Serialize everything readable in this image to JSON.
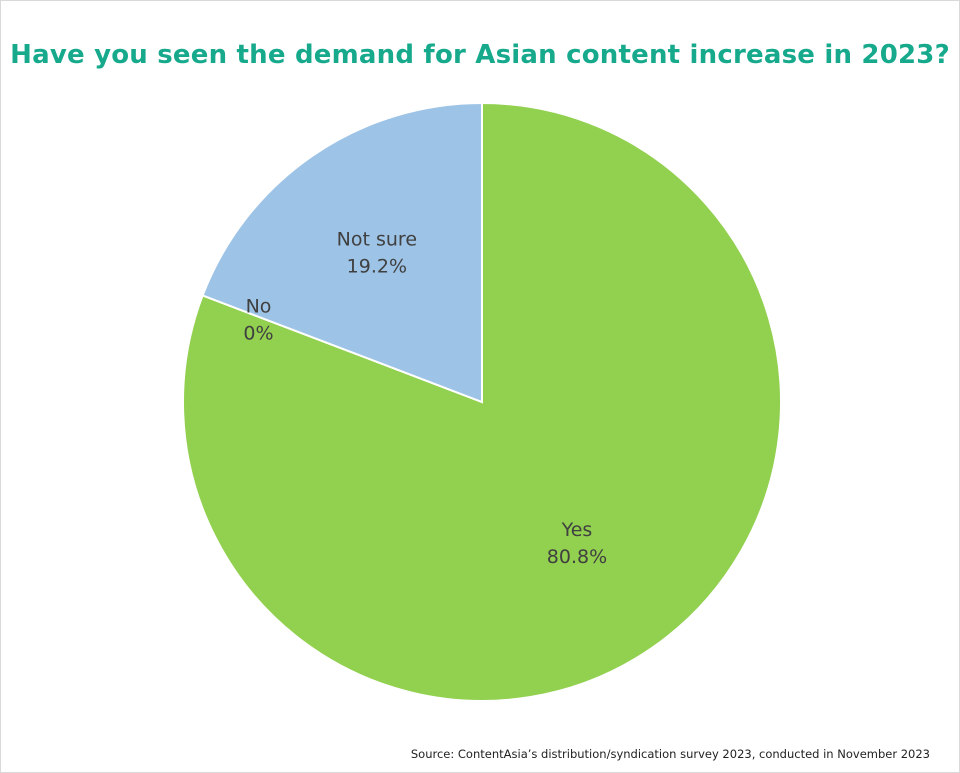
{
  "chart_data": {
    "type": "pie",
    "title": "Have you seen the demand for Asian content increase in 2023?",
    "slices": [
      {
        "label": "Yes",
        "value": 80.8,
        "display": "80.8%",
        "color": "#92d050"
      },
      {
        "label": "No",
        "value": 0,
        "display": "0%",
        "color": "#5b9bd5"
      },
      {
        "label": "Not sure",
        "value": 19.2,
        "display": "19.2%",
        "color": "#9dc3e6"
      }
    ],
    "source": "Source: ContentAsia’s distribution/syndication survey 2023, conducted in November 2023",
    "colors": {
      "title": "#16a98c",
      "slice_border": "#ffffff"
    }
  }
}
